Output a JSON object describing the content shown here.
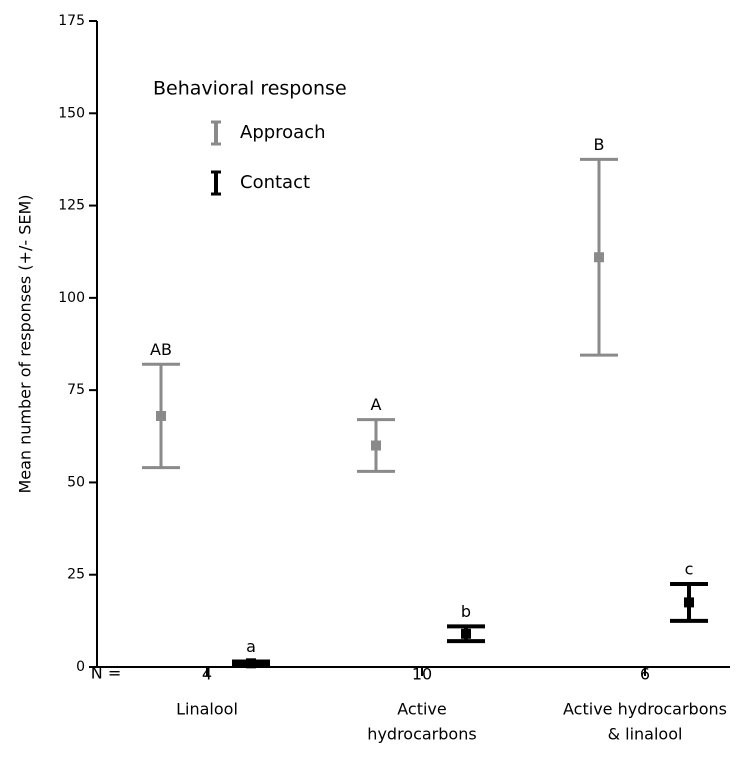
{
  "chart_data": {
    "type": "errorbar",
    "y_label": "Mean number of responses (+/- SEM)",
    "legend_title": "Behavioral response",
    "categories": [
      [
        "Linalool"
      ],
      [
        "Active",
        "hydrocarbons"
      ],
      [
        "Active hydrocarbons",
        "& linalool"
      ]
    ],
    "n_label": "N =",
    "n": [
      4,
      10,
      6
    ],
    "series": [
      {
        "name": "Approach",
        "color": "#8a8a8a",
        "values": [
          68,
          60,
          111
        ],
        "errors": [
          14,
          7,
          26.5
        ],
        "letters": [
          "AB",
          "A",
          "B"
        ]
      },
      {
        "name": "Contact",
        "color": "#000000",
        "values": [
          1,
          9,
          17.5
        ],
        "errors": [
          0.5,
          2,
          5
        ],
        "letters": [
          "a",
          "b",
          "c"
        ]
      }
    ],
    "ylim": [
      0,
      175
    ],
    "yticks": [
      0,
      25,
      50,
      75,
      100,
      125,
      150,
      175
    ]
  }
}
